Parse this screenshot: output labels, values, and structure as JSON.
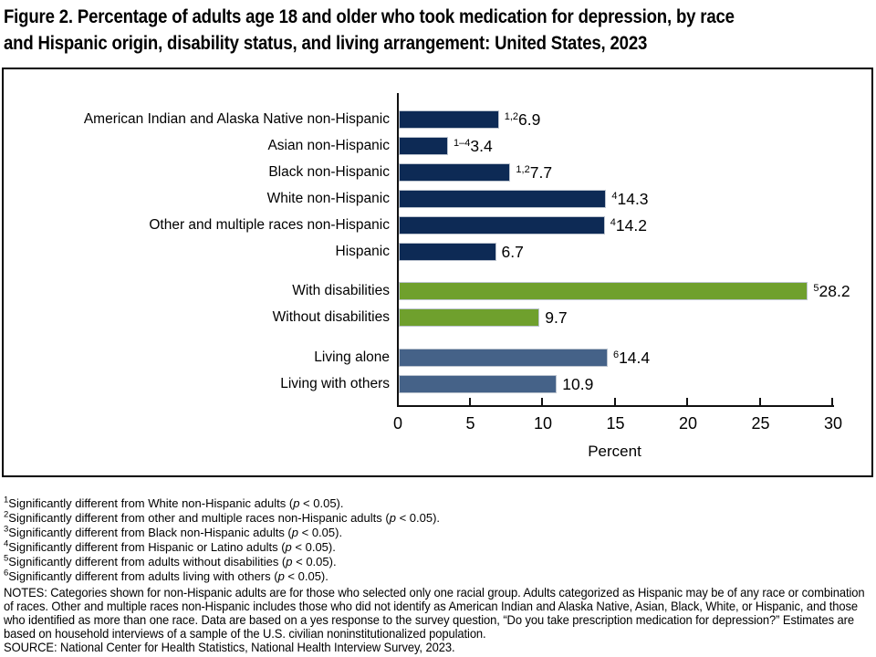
{
  "title": {
    "lines": [
      "Figure 2. Percentage of adults age 18 and older who took medication for depression, by race",
      "and Hispanic origin, disability status, and living arrangement: United States, 2023"
    ]
  },
  "chart_data": {
    "type": "bar",
    "orientation": "horizontal",
    "title": "Figure 2. Percentage of adults age 18 and older who took medication for depression, by race and Hispanic origin, disability status, and living arrangement: United States, 2023",
    "xlabel": "Percent",
    "xlim": [
      0,
      30
    ],
    "xticks": [
      0,
      5,
      10,
      15,
      20,
      25,
      30
    ],
    "grid": false,
    "legend": "none",
    "groups": [
      {
        "name": "race-and-hispanic-origin",
        "color": "#0d2a55",
        "rows": [
          {
            "label": "American Indian and Alaska Native non-Hispanic",
            "sup": "1,2",
            "value": 6.9
          },
          {
            "label": "Asian non-Hispanic",
            "sup": "1–4",
            "value": 3.4
          },
          {
            "label": "Black non-Hispanic",
            "sup": "1,2",
            "value": 7.7
          },
          {
            "label": "White non-Hispanic",
            "sup": "4",
            "value": 14.3
          },
          {
            "label": "Other and multiple races non-Hispanic",
            "sup": "4",
            "value": 14.2
          },
          {
            "label": "Hispanic",
            "sup": "",
            "value": 6.7
          }
        ]
      },
      {
        "name": "disability-status",
        "color": "#6fa02d",
        "rows": [
          {
            "label": "With disabilities",
            "sup": "5",
            "value": 28.2
          },
          {
            "label": "Without disabilities",
            "sup": "",
            "value": 9.7
          }
        ]
      },
      {
        "name": "living-arrangement",
        "color": "#456288",
        "rows": [
          {
            "label": "Living alone",
            "sup": "6",
            "value": 14.4
          },
          {
            "label": "Living with others",
            "sup": "",
            "value": 10.9
          }
        ]
      }
    ]
  },
  "footnotes": [
    {
      "sup": "1",
      "text": "Significantly different from White non-Hispanic adults (p < 0.05)."
    },
    {
      "sup": "2",
      "text": "Significantly different from other and multiple races non-Hispanic adults (p < 0.05)."
    },
    {
      "sup": "3",
      "text": "Significantly different from Black non-Hispanic adults (p < 0.05)."
    },
    {
      "sup": "4",
      "text": "Significantly different from Hispanic or Latino adults (p < 0.05)."
    },
    {
      "sup": "5",
      "text": "Significantly different from adults without disabilities (p < 0.05)."
    },
    {
      "sup": "6",
      "text": "Significantly different from adults living with others (p < 0.05)."
    }
  ],
  "notes": {
    "text": "NOTES: Categories shown for non-Hispanic adults are for those who selected only one racial group. Adults categorized as Hispanic may be of any race or combination of races. Other and multiple races non-Hispanic includes those who did not identify as American Indian and Alaska Native, Asian, Black, White, or Hispanic, and those who identified as more than one race. Data are based on a yes response to the survey question, “Do you take prescription medication for depression?” Estimates are based on household interviews of a sample of the U.S. civilian noninstitutionalized population."
  },
  "source": {
    "text": "SOURCE: National Center for Health Statistics, National Health Interview Survey, 2023."
  }
}
